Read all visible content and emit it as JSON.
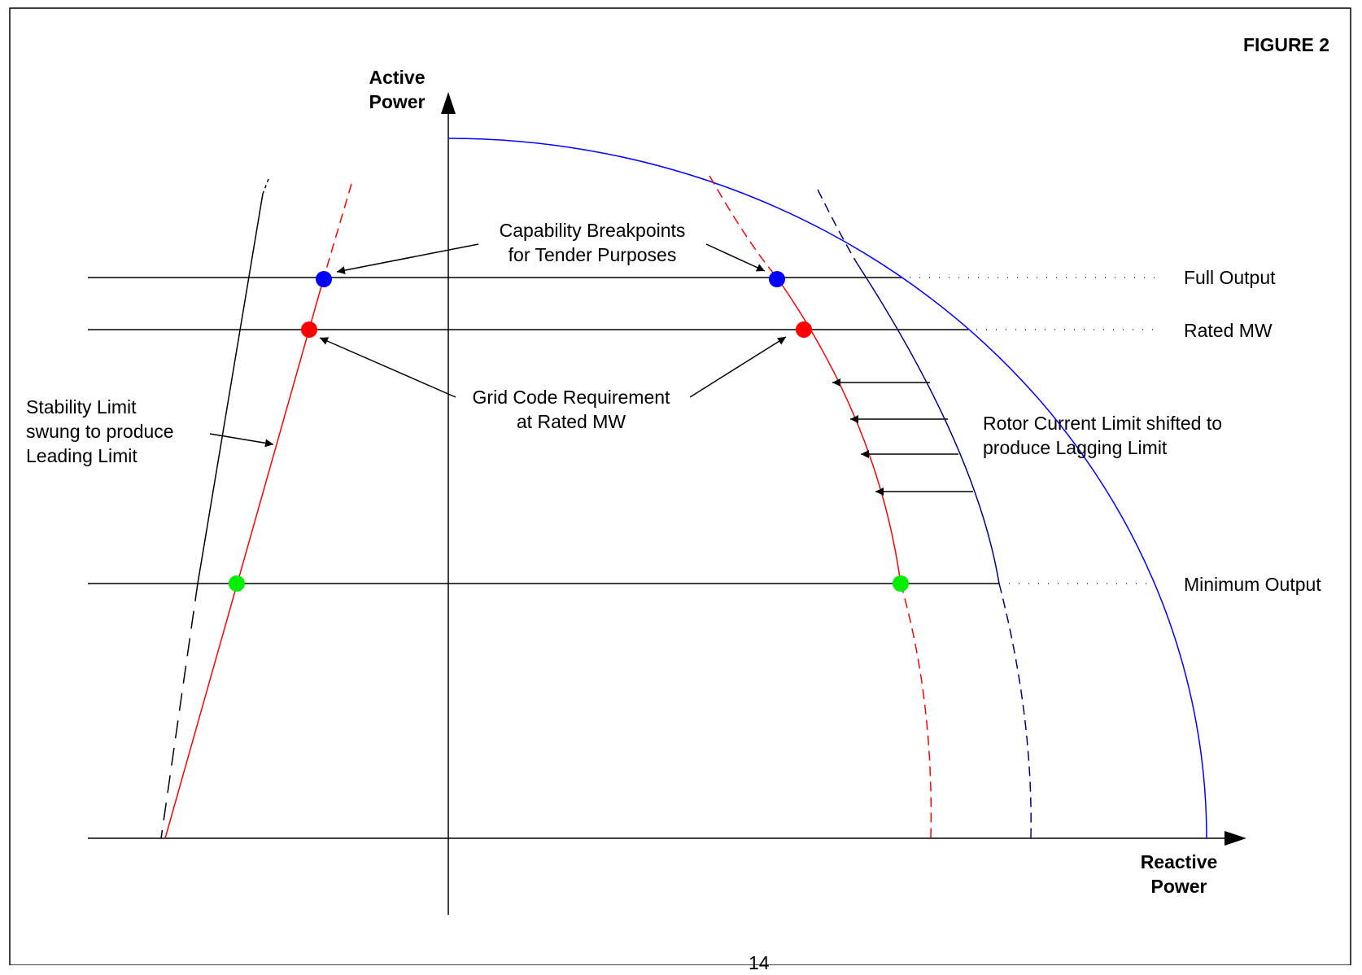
{
  "figure_label": "FIGURE 2",
  "axes": {
    "y_label_line1": "Active",
    "y_label_line2": "Power",
    "x_label_line1": "Reactive",
    "x_label_line2": "Power"
  },
  "levels": {
    "full_output": "Full Output",
    "rated_mw": "Rated MW",
    "minimum_output": "Minimum Output"
  },
  "annotations": {
    "capability_line1": "Capability Breakpoints",
    "capability_line2": "for Tender Purposes",
    "grid_code_line1": "Grid Code Requirement",
    "grid_code_line2": "at Rated MW",
    "stability_line1": "Stability Limit",
    "stability_line2": "swung to produce",
    "stability_line3": "Leading Limit",
    "rotor_line1": "Rotor Current Limit shifted to",
    "rotor_line2": "produce Lagging Limit"
  },
  "page_number": "14",
  "colors": {
    "circle": "#0000ff",
    "rotor_limit": "#000080",
    "adjusted_limit": "#ff0000",
    "breakpoint_full": "#0000ff",
    "breakpoint_rated": "#ff0000",
    "breakpoint_minimum": "#00ee00"
  }
}
